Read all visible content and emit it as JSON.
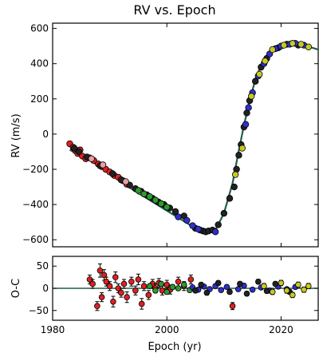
{
  "chart_data": [
    {
      "type": "scatter",
      "title": "RV vs. Epoch",
      "xlabel": "",
      "ylabel": "RV (m/s)",
      "xlim": [
        1980,
        2026.5
      ],
      "ylim": [
        -640,
        630
      ],
      "xticks": [
        1980,
        2000,
        2020
      ],
      "yticks": [
        -600,
        -400,
        -200,
        0,
        200,
        400,
        600
      ],
      "grid": false,
      "legend": "none",
      "model_curve": {
        "color": "#1f5f4f",
        "x": [
          1983,
          1986,
          1990,
          1994,
          1998,
          2002,
          2004.5,
          2006.5,
          2008.5,
          2010,
          2011.5,
          2012.5,
          2013.5,
          2014.5,
          2015.5,
          2016.5,
          2017.5,
          2018.5,
          2020,
          2021.5,
          2023,
          2024.5,
          2026.5
        ],
        "y": [
          -90,
          -135,
          -225,
          -315,
          -395,
          -475,
          -525,
          -555,
          -545,
          -450,
          -280,
          -110,
          50,
          190,
          310,
          390,
          445,
          480,
          505,
          515,
          515,
          500,
          480
        ]
      },
      "series": [
        {
          "color": "#e02020",
          "x": [
            1983,
            1983.6,
            1984,
            1984.4,
            1984.8,
            1985.2,
            1985.8,
            1986.5,
            1987.2,
            1988,
            1988.6,
            1989.3,
            1990,
            1990.8,
            1991.5,
            1992.3,
            1993
          ],
          "y": [
            -55,
            -75,
            -95,
            -110,
            -90,
            -125,
            -140,
            -135,
            -150,
            -170,
            -185,
            -200,
            -215,
            -235,
            -245,
            -265,
            -285
          ]
        },
        {
          "color": "#222222",
          "x": [
            1983.8,
            1984.6,
            1986,
            1988.3,
            1990.5,
            1992,
            1993.5,
            1994.5,
            1995.5,
            1996.5,
            1997.5,
            1998.5,
            1999.5,
            2000.5,
            2001.5,
            2003,
            2005,
            2005.8,
            2006.3,
            2006.8,
            2007.3,
            2008,
            2009,
            2010,
            2011,
            2011.8,
            2012.2,
            2012.6,
            2013,
            2013.5,
            2014,
            2014.5,
            2015.5,
            2016.5,
            2017.5,
            2019.5,
            2021,
            2023
          ],
          "y": [
            -80,
            -100,
            -130,
            -180,
            -225,
            -260,
            -290,
            -310,
            -325,
            -345,
            -365,
            -385,
            -400,
            -420,
            -440,
            -465,
            -535,
            -545,
            -550,
            -555,
            -550,
            -545,
            -515,
            -450,
            -365,
            -300,
            -200,
            -120,
            -60,
            40,
            120,
            190,
            300,
            380,
            430,
            490,
            510,
            505
          ]
        },
        {
          "color": "#e8a0a0",
          "x": [
            1986.8,
            1988.8,
            1992.8,
            1995.2
          ],
          "y": [
            -140,
            -175,
            -270,
            -325
          ]
        },
        {
          "color": "#2e9a2e",
          "x": [
            1995,
            1996,
            1997,
            1998,
            1999,
            2000
          ],
          "y": [
            -320,
            -340,
            -355,
            -375,
            -395,
            -415
          ]
        },
        {
          "color": "#2f2fd0",
          "x": [
            2002,
            2003.5,
            2004.5,
            2005.5,
            2008.5,
            2013.8,
            2014.3,
            2015,
            2016,
            2017,
            2018,
            2019,
            2020,
            2021.5,
            2022.5,
            2024
          ],
          "y": [
            -470,
            -490,
            -520,
            -540,
            -555,
            55,
            150,
            235,
            330,
            400,
            455,
            485,
            500,
            510,
            515,
            505
          ]
        },
        {
          "color": "#c8c820",
          "x": [
            2012,
            2013.2,
            2014.8,
            2016.2,
            2017.2,
            2018.5,
            2020.5,
            2022,
            2023.5,
            2024.8
          ],
          "y": [
            -230,
            -80,
            215,
            340,
            415,
            480,
            505,
            515,
            510,
            495
          ]
        }
      ]
    },
    {
      "type": "scatter",
      "title": "",
      "xlabel": "Epoch (yr)",
      "ylabel": "O-C",
      "xlim": [
        1980,
        2026.5
      ],
      "ylim": [
        -72,
        72
      ],
      "xticks": [
        1980,
        2000,
        2020
      ],
      "yticks": [
        -50,
        0,
        50
      ],
      "grid": false,
      "legend": "none",
      "zero_line": true,
      "series": [
        {
          "color": "#e02020",
          "x": [
            1986.5,
            1987,
            1987.8,
            1988.3,
            1988.6,
            1989,
            1989.4,
            1990,
            1990.6,
            1991,
            1991.5,
            1992,
            1992.5,
            1993,
            1993.8,
            1994.5,
            1995,
            1995.6,
            1996,
            1996.8,
            1997.5,
            1998,
            1998.6,
            1999.2,
            2000,
            2000.6,
            2002,
            2003,
            2004.2,
            2011.5
          ],
          "y": [
            20,
            10,
            -40,
            40,
            -20,
            30,
            15,
            5,
            -30,
            25,
            0,
            -10,
            10,
            -20,
            15,
            -5,
            20,
            -35,
            5,
            -15,
            10,
            0,
            12,
            -5,
            8,
            -3,
            15,
            5,
            20,
            -40
          ],
          "err": [
            10,
            10,
            10,
            15,
            10,
            12,
            10,
            10,
            12,
            12,
            10,
            10,
            10,
            12,
            10,
            10,
            12,
            12,
            10,
            10,
            10,
            10,
            10,
            10,
            10,
            10,
            10,
            10,
            10,
            8
          ]
        },
        {
          "color": "#2e9a2e",
          "x": [
            1997,
            1998,
            1999,
            2000,
            2001,
            2002,
            2003,
            2004
          ],
          "y": [
            5,
            -5,
            10,
            -8,
            3,
            0,
            8,
            -4
          ],
          "err": [
            5,
            5,
            5,
            5,
            5,
            5,
            5,
            5
          ]
        },
        {
          "color": "#2f2fd0",
          "x": [
            2004.5,
            2005.5,
            2006.5,
            2007.5,
            2008.5,
            2009.5,
            2010.5,
            2012.5,
            2013.5,
            2015,
            2016.5,
            2018,
            2019.5,
            2021,
            2022.5
          ],
          "y": [
            2,
            -3,
            4,
            -2,
            5,
            -4,
            3,
            -2,
            6,
            -3,
            2,
            -5,
            4,
            -2,
            3
          ],
          "err": [
            4,
            4,
            4,
            4,
            4,
            4,
            4,
            4,
            4,
            4,
            4,
            4,
            4,
            4,
            4
          ]
        },
        {
          "color": "#222222",
          "x": [
            2005,
            2006,
            2007,
            2009,
            2011,
            2012.8,
            2014,
            2016,
            2017.5,
            2019,
            2021.5
          ],
          "y": [
            -5,
            8,
            -10,
            12,
            -8,
            10,
            -12,
            15,
            -6,
            10,
            -8
          ],
          "err": [
            5,
            5,
            5,
            5,
            5,
            5,
            5,
            5,
            5,
            5,
            5
          ]
        },
        {
          "color": "#c8c820",
          "x": [
            2017,
            2018.5,
            2020,
            2021,
            2022,
            2023,
            2024,
            2024.8
          ],
          "y": [
            5,
            -8,
            12,
            -5,
            -15,
            8,
            -3,
            5
          ],
          "err": [
            6,
            6,
            6,
            6,
            6,
            6,
            6,
            6
          ]
        }
      ]
    }
  ]
}
